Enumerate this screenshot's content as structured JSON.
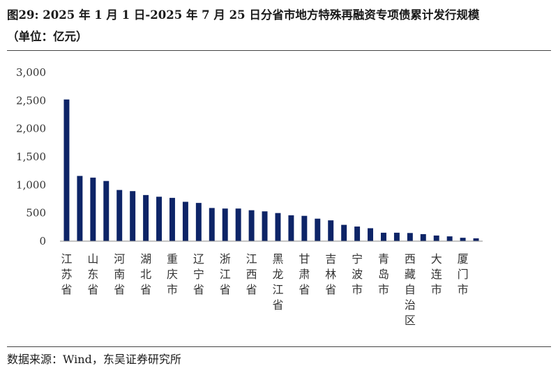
{
  "title": {
    "line1": "图29:  2025 年 1 月 1 日-2025 年 7 月 25 日分省市地方特殊再融资专项债累计发行规模",
    "line2": "（单位：亿元）"
  },
  "source": "数据来源：Wind，东吴证券研究所",
  "colors": {
    "bar": "#0d2467",
    "axis": "#888888",
    "text": "#333333"
  },
  "chart_data": {
    "type": "bar",
    "title": "图29:  2025 年 1 月 1 日-2025 年 7 月 25 日分省市地方特殊再融资专项债累计发行规模",
    "subtitle": "（单位：亿元）",
    "xlabel": "",
    "ylabel": "",
    "ylim": [
      0,
      3000
    ],
    "yticks": [
      0,
      500,
      1000,
      1500,
      2000,
      2500,
      3000
    ],
    "ytick_labels": [
      "0",
      "500",
      "1,000",
      "1,500",
      "2,000",
      "2,500",
      "3,000"
    ],
    "grid": false,
    "legend": "none",
    "categories": [
      "江苏省",
      "",
      "山东省",
      "",
      "河南省",
      "",
      "湖北省",
      "",
      "重庆市",
      "",
      "辽宁省",
      "",
      "浙江省",
      "",
      "江西省",
      "",
      "黑龙江省",
      "",
      "甘肃省",
      "",
      "吉林省",
      "",
      "宁波市",
      "",
      "青岛市",
      "",
      "西藏自治区",
      "",
      "大连市",
      "",
      "厦门市",
      ""
    ],
    "values": [
      2520,
      1160,
      1130,
      1070,
      910,
      890,
      820,
      790,
      770,
      700,
      680,
      590,
      580,
      580,
      550,
      530,
      500,
      460,
      450,
      400,
      370,
      290,
      260,
      230,
      150,
      150,
      145,
      125,
      100,
      85,
      60,
      50
    ]
  }
}
